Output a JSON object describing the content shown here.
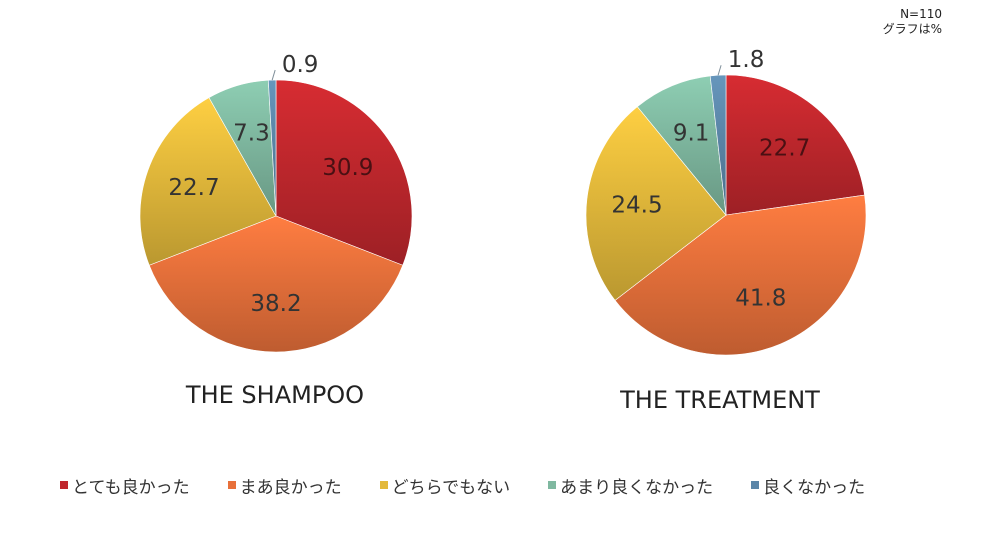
{
  "notes": {
    "n": "N=110",
    "unit": "グラフは%"
  },
  "legend": [
    {
      "label": "とても良かった",
      "color": "#c0272d"
    },
    {
      "label": "まあ良かった",
      "color": "#e8703a"
    },
    {
      "label": "どちらでもない",
      "color": "#e3b93b"
    },
    {
      "label": "あまり良くなかった",
      "color": "#7fb8a0"
    },
    {
      "label": "良くなかった",
      "color": "#5b86a8"
    }
  ],
  "chart_data": [
    {
      "type": "pie",
      "title": "THE SHAMPOO",
      "categories": [
        "とても良かった",
        "まあ良かった",
        "どちらでもない",
        "あまり良くなかった",
        "良くなかった"
      ],
      "values": [
        30.9,
        38.2,
        22.7,
        7.3,
        0.9
      ],
      "labels": [
        "30.9",
        "38.2",
        "22.7",
        "7.3",
        "0.9"
      ],
      "colors": [
        "#c0272d",
        "#e8703a",
        "#e3b93b",
        "#7fb8a0",
        "#5b86a8"
      ]
    },
    {
      "type": "pie",
      "title": "THE TREATMENT",
      "categories": [
        "とても良かった",
        "まあ良かった",
        "どちらでもない",
        "あまり良くなかった",
        "良くなかった"
      ],
      "values": [
        22.7,
        41.8,
        24.5,
        9.1,
        1.8
      ],
      "labels": [
        "22.7",
        "41.8",
        "24.5",
        "9.1",
        "1.8"
      ],
      "colors": [
        "#c0272d",
        "#e8703a",
        "#e3b93b",
        "#7fb8a0",
        "#5b86a8"
      ]
    }
  ]
}
